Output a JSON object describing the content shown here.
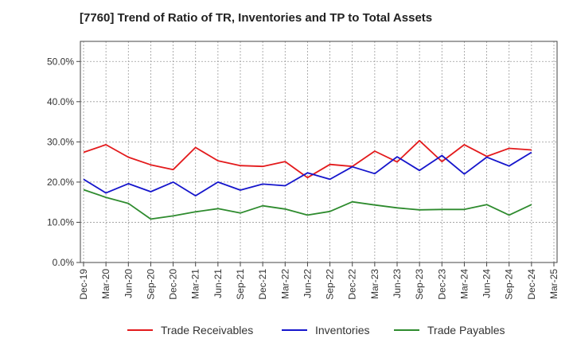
{
  "chart_data": {
    "type": "line",
    "title": "[7760]  Trend of Ratio of TR, Inventories and TP to Total Assets",
    "xlabel": "",
    "ylabel": "",
    "ylim": [
      0,
      55
    ],
    "yticks": [
      "0.0%",
      "10.0%",
      "20.0%",
      "30.0%",
      "40.0%",
      "50.0%"
    ],
    "ytick_values": [
      0,
      10,
      20,
      30,
      40,
      50
    ],
    "categories": [
      "Dec-19",
      "Mar-20",
      "Jun-20",
      "Sep-20",
      "Dec-20",
      "Mar-21",
      "Jun-21",
      "Sep-21",
      "Dec-21",
      "Mar-22",
      "Jun-22",
      "Sep-22",
      "Dec-22",
      "Mar-23",
      "Jun-23",
      "Sep-23",
      "Dec-23",
      "Mar-24",
      "Jun-24",
      "Sep-24",
      "Dec-24",
      "Mar-25"
    ],
    "grid": true,
    "legend_position": "bottom",
    "series": [
      {
        "name": "Trade Receivables",
        "color": "#e31a1c",
        "values": [
          27.4,
          29.3,
          26.2,
          24.3,
          23.1,
          28.6,
          25.3,
          24.1,
          23.9,
          25.1,
          21.1,
          24.4,
          23.9,
          27.7,
          25.0,
          30.3,
          25.1,
          29.3,
          26.4,
          28.4,
          28.0,
          null
        ]
      },
      {
        "name": "Inventories",
        "color": "#1515cc",
        "values": [
          20.7,
          17.3,
          19.6,
          17.6,
          20.0,
          16.6,
          20.0,
          18.0,
          19.5,
          19.1,
          22.3,
          20.7,
          23.8,
          22.1,
          26.3,
          22.9,
          26.6,
          22.0,
          26.2,
          24.0,
          27.4,
          null
        ]
      },
      {
        "name": "Trade Payables",
        "color": "#2e8b2e",
        "values": [
          18.1,
          16.2,
          14.7,
          10.8,
          11.6,
          12.6,
          13.4,
          12.3,
          14.1,
          13.3,
          11.8,
          12.7,
          15.1,
          14.3,
          13.6,
          13.1,
          13.2,
          13.2,
          14.4,
          11.8,
          14.4,
          null
        ]
      }
    ]
  }
}
